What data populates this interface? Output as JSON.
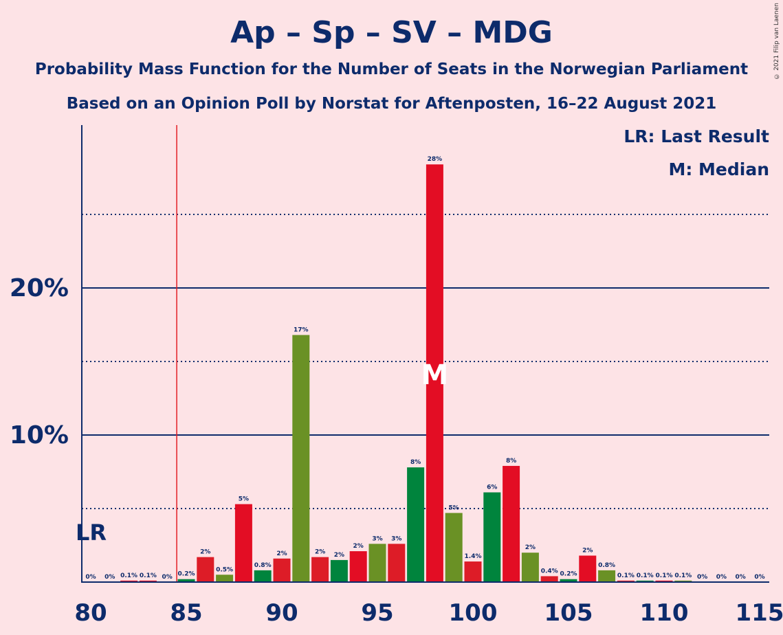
{
  "header": {
    "title": "Ap – Sp – SV – MDG",
    "subtitle1": "Probability Mass Function for the Number of Seats in the Norwegian Parliament",
    "subtitle2": "Based on an Opinion Poll by Norstat for Aftenposten, 16–22 August 2021",
    "copyright": "© 2021 Filip van Laenen"
  },
  "legend": {
    "last_result": "LR: Last Result",
    "median": "M: Median"
  },
  "markers": {
    "lr_label": "LR",
    "median_label": "M"
  },
  "colors": {
    "background": "#fde3e6",
    "text": "#0d2b6b",
    "ap_red": "#e30d24",
    "sp_green": "#00843d",
    "sv_red": "#dd1c27",
    "mdg_green": "#6a9125",
    "lr_line": "#e31e24"
  },
  "chart_data": {
    "type": "bar",
    "x": [
      80,
      81,
      82,
      83,
      84,
      85,
      86,
      87,
      88,
      89,
      90,
      91,
      92,
      93,
      94,
      95,
      96,
      97,
      98,
      99,
      100,
      101,
      102,
      103,
      104,
      105,
      106,
      107,
      108,
      109,
      110,
      111,
      112,
      113,
      114,
      115
    ],
    "values": [
      0,
      0,
      0.1,
      0.1,
      0,
      0.2,
      1.7,
      0.5,
      5.3,
      0.8,
      1.6,
      16.8,
      1.7,
      1.5,
      2.1,
      2.6,
      2.6,
      7.8,
      28.4,
      4.7,
      1.4,
      6.1,
      7.9,
      2.0,
      0.4,
      0.2,
      1.8,
      0.8,
      0.1,
      0.1,
      0.1,
      0.1,
      0,
      0,
      0,
      0
    ],
    "labels": [
      "0%",
      "0%",
      "0.1%",
      "0.1%",
      "0%",
      "0.2%",
      "2%",
      "0.5%",
      "5%",
      "0.8%",
      "2%",
      "17%",
      "2%",
      "2%",
      "2%",
      "3%",
      "3%",
      "8%",
      "28%",
      "5%",
      "1.4%",
      "6%",
      "8%",
      "2%",
      "0.4%",
      "0.2%",
      "2%",
      "0.8%",
      "0.1%",
      "0.1%",
      "0.1%",
      "0.1%",
      "0%",
      "0%",
      "0%",
      "0%"
    ],
    "bar_colors": [
      "ap_red",
      "ap_red",
      "ap_red",
      "ap_red",
      "ap_red",
      "sp_green",
      "sv_red",
      "mdg_green",
      "ap_red",
      "sp_green",
      "sv_red",
      "mdg_green",
      "sv_red",
      "sp_green",
      "ap_red",
      "mdg_green",
      "sv_red",
      "sp_green",
      "ap_red",
      "mdg_green",
      "sv_red",
      "sp_green",
      "ap_red",
      "mdg_green",
      "sv_red",
      "sp_green",
      "ap_red",
      "mdg_green",
      "sv_red",
      "sp_green",
      "ap_red",
      "mdg_green",
      "sv_red",
      "sp_green",
      "ap_red",
      "mdg_green"
    ],
    "xticks": [
      80,
      85,
      90,
      95,
      100,
      105,
      110,
      115
    ],
    "yticks_major": [
      10,
      20
    ],
    "ytick_labels": [
      "10%",
      "20%"
    ],
    "yticks_minor": [
      5,
      15,
      25
    ],
    "ylim": [
      0,
      31
    ],
    "xlim": [
      80,
      115
    ],
    "last_result": 84.5,
    "median": 98
  }
}
